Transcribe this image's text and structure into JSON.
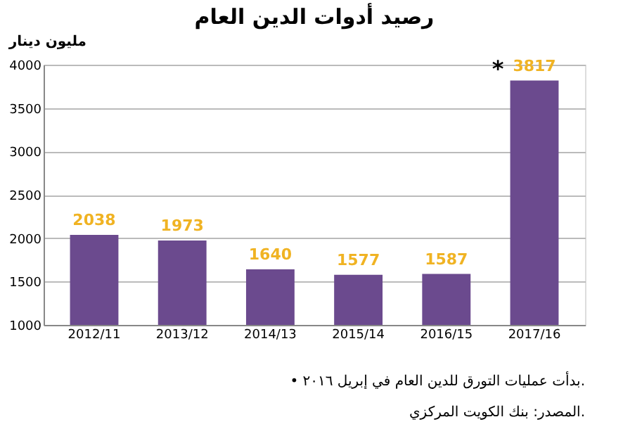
{
  "chart_data": {
    "type": "bar",
    "title": "رصيد أدوات الدين العام",
    "ylabel": "مليون دينار",
    "categories": [
      "2012/11",
      "2013/12",
      "2014/13",
      "2015/14",
      "2016/15",
      "2017/16"
    ],
    "values": [
      2038,
      1973,
      1640,
      1577,
      1587,
      3817
    ],
    "color": "#6b4a8e",
    "ylim": [
      1000,
      4000
    ],
    "yticks": [
      1000,
      1500,
      2000,
      2500,
      3000,
      3500,
      4000
    ],
    "grid": "y",
    "data_labels": true,
    "annotations": [
      {
        "text": "*",
        "x": "2017/16",
        "y": 3817
      },
      "• بدأت عمليات التورق للدين العام في إبريل ٢٠١٦.",
      "المصدر: بنك الكويت المركزي."
    ]
  }
}
